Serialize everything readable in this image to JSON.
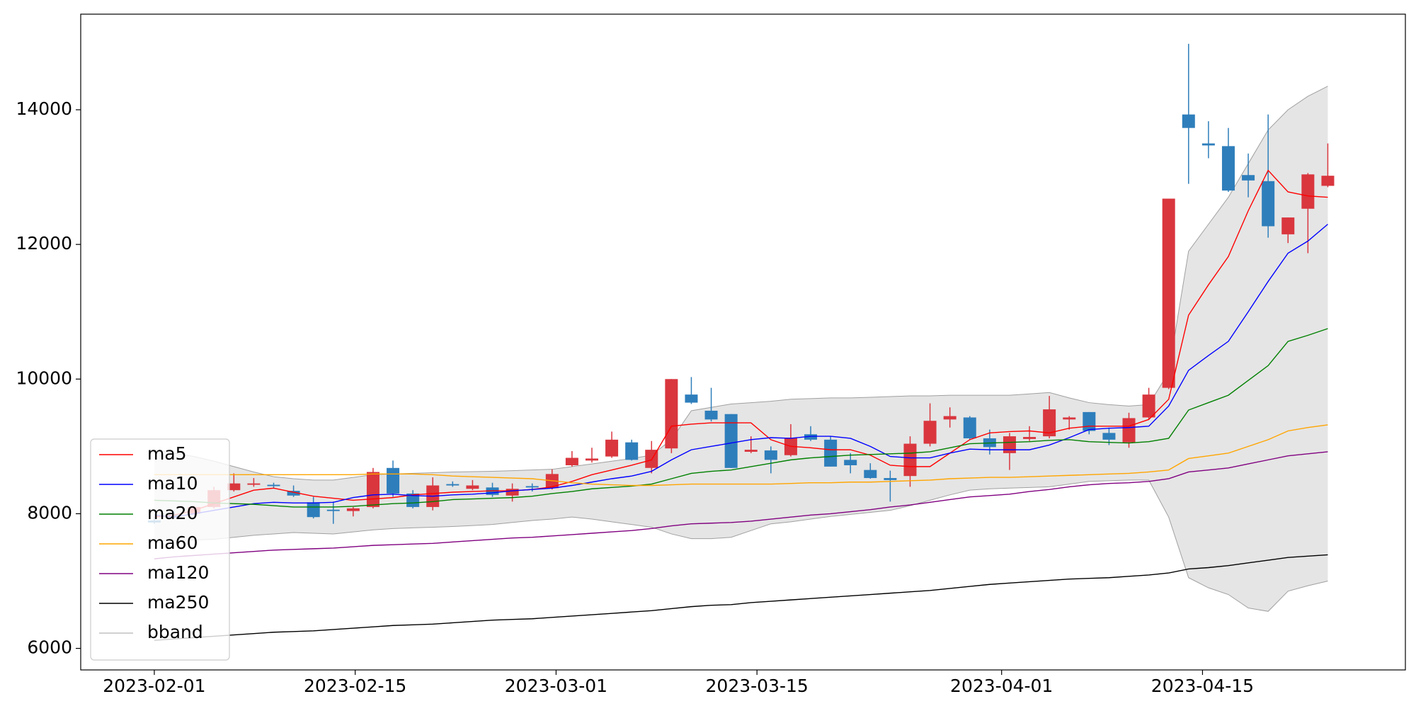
{
  "chart_data": {
    "type": "candlestick",
    "x": [
      "2023-02-01",
      "2023-02-02",
      "2023-02-03",
      "2023-02-06",
      "2023-02-07",
      "2023-02-08",
      "2023-02-09",
      "2023-02-10",
      "2023-02-13",
      "2023-02-14",
      "2023-02-15",
      "2023-02-16",
      "2023-02-17",
      "2023-02-20",
      "2023-02-21",
      "2023-02-22",
      "2023-02-23",
      "2023-02-24",
      "2023-02-27",
      "2023-02-28",
      "2023-03-01",
      "2023-03-02",
      "2023-03-03",
      "2023-03-06",
      "2023-03-07",
      "2023-03-08",
      "2023-03-09",
      "2023-03-10",
      "2023-03-13",
      "2023-03-14",
      "2023-03-15",
      "2023-03-16",
      "2023-03-17",
      "2023-03-20",
      "2023-03-21",
      "2023-03-22",
      "2023-03-23",
      "2023-03-24",
      "2023-03-27",
      "2023-03-28",
      "2023-03-29",
      "2023-03-30",
      "2023-03-31",
      "2023-04-03",
      "2023-04-04",
      "2023-04-05",
      "2023-04-06",
      "2023-04-07",
      "2023-04-10",
      "2023-04-11",
      "2023-04-12",
      "2023-04-13",
      "2023-04-14",
      "2023-04-17",
      "2023-04-18",
      "2023-04-19",
      "2023-04-20",
      "2023-04-21",
      "2023-04-24",
      "2023-04-25"
    ],
    "open": [
      7900,
      7990,
      8000,
      8100,
      8350,
      8430,
      8430,
      8340,
      8170,
      8060,
      8040,
      8100,
      8680,
      8300,
      8100,
      8440,
      8370,
      8390,
      8270,
      8410,
      8380,
      8720,
      8790,
      8850,
      9060,
      8680,
      8970,
      9770,
      9530,
      9480,
      8920,
      8940,
      8870,
      9180,
      9100,
      8800,
      8650,
      8530,
      8560,
      9040,
      9400,
      9430,
      9120,
      8900,
      9110,
      9150,
      9400,
      9510,
      9200,
      9060,
      9430,
      9870,
      13930,
      13500,
      13460,
      13030,
      12940,
      12150,
      12530,
      12870
    ],
    "high": [
      7960,
      8050,
      8120,
      8400,
      8600,
      8530,
      8460,
      8420,
      8250,
      8180,
      8100,
      8680,
      8790,
      8350,
      8540,
      8480,
      8500,
      8460,
      8450,
      8450,
      8660,
      8930,
      8980,
      9220,
      9100,
      9080,
      10000,
      10030,
      9870,
      9480,
      9150,
      9000,
      9330,
      9300,
      9150,
      8900,
      8750,
      8640,
      9150,
      9640,
      9580,
      9450,
      9250,
      9200,
      9300,
      9750,
      9450,
      9510,
      9280,
      9500,
      9870,
      12680,
      14980,
      13830,
      13730,
      13350,
      13930,
      12400,
      13060,
      13500
    ],
    "low": [
      7850,
      7930,
      7980,
      8080,
      8330,
      8400,
      8380,
      8250,
      7930,
      7850,
      7960,
      8080,
      8250,
      8080,
      8050,
      8400,
      8350,
      8250,
      8180,
      8330,
      8360,
      8700,
      8760,
      8830,
      8790,
      8600,
      8900,
      9630,
      9370,
      8680,
      8900,
      8600,
      8850,
      9080,
      8700,
      8600,
      8520,
      8180,
      8400,
      9000,
      9280,
      9100,
      8880,
      8650,
      9080,
      9120,
      9250,
      9180,
      9020,
      8980,
      9400,
      9850,
      12900,
      13280,
      12780,
      12700,
      12100,
      12020,
      11870,
      12850
    ],
    "close": [
      7870,
      7960,
      8100,
      8350,
      8450,
      8450,
      8410,
      8270,
      7950,
      8040,
      8080,
      8620,
      8300,
      8100,
      8420,
      8420,
      8420,
      8280,
      8370,
      8390,
      8590,
      8830,
      8820,
      9100,
      8800,
      8950,
      10000,
      9650,
      9400,
      8680,
      8950,
      8800,
      9130,
      9100,
      8700,
      8720,
      8530,
      8500,
      9040,
      9380,
      9450,
      9120,
      8990,
      9150,
      9140,
      9550,
      9430,
      9230,
      9100,
      9420,
      9770,
      12680,
      13730,
      13470,
      12800,
      12950,
      12270,
      12400,
      13040,
      13020
    ],
    "up_color": "#d9363e",
    "down_color": "#2e7ebb",
    "series": [
      {
        "name": "ma5",
        "color": "#ff0000",
        "values": [
          7950,
          7980,
          8050,
          8150,
          8250,
          8350,
          8380,
          8320,
          8260,
          8230,
          8200,
          8220,
          8240,
          8280,
          8300,
          8320,
          8330,
          8340,
          8340,
          8360,
          8400,
          8480,
          8580,
          8650,
          8720,
          8800,
          9300,
          9330,
          9350,
          9350,
          9350,
          9100,
          9000,
          8980,
          8950,
          8950,
          8870,
          8720,
          8700,
          8700,
          8900,
          9100,
          9200,
          9220,
          9230,
          9200,
          9270,
          9300,
          9300,
          9300,
          9400,
          9700,
          10950,
          11400,
          11820,
          12500,
          13100,
          12780,
          12720,
          12700
        ]
      },
      {
        "name": "ma10",
        "color": "#0000ff",
        "values": [
          7980,
          7950,
          8000,
          8050,
          8100,
          8150,
          8170,
          8160,
          8160,
          8170,
          8240,
          8280,
          8290,
          8270,
          8260,
          8280,
          8290,
          8310,
          8340,
          8360,
          8380,
          8420,
          8470,
          8520,
          8560,
          8630,
          8800,
          8950,
          9000,
          9050,
          9100,
          9130,
          9120,
          9150,
          9150,
          9120,
          9000,
          8850,
          8830,
          8830,
          8900,
          8960,
          8950,
          8950,
          8950,
          9020,
          9130,
          9250,
          9270,
          9280,
          9300,
          9600,
          10130,
          10350,
          10560,
          11000,
          11450,
          11870,
          12050,
          12300
        ]
      },
      {
        "name": "ma20",
        "color": "#008000",
        "values": [
          8200,
          8190,
          8180,
          8160,
          8150,
          8140,
          8120,
          8100,
          8100,
          8100,
          8110,
          8130,
          8150,
          8160,
          8180,
          8210,
          8220,
          8230,
          8240,
          8260,
          8300,
          8330,
          8370,
          8390,
          8410,
          8440,
          8520,
          8600,
          8630,
          8650,
          8700,
          8750,
          8800,
          8830,
          8850,
          8870,
          8880,
          8890,
          8900,
          8920,
          8980,
          9040,
          9050,
          9060,
          9070,
          9090,
          9100,
          9070,
          9060,
          9050,
          9070,
          9120,
          9540,
          9650,
          9760,
          9980,
          10200,
          10560,
          10650,
          10750
        ]
      },
      {
        "name": "ma60",
        "color": "#ffa500",
        "values": [
          8580,
          8580,
          8580,
          8580,
          8580,
          8580,
          8580,
          8580,
          8580,
          8580,
          8580,
          8590,
          8590,
          8590,
          8580,
          8560,
          8550,
          8540,
          8530,
          8520,
          8490,
          8460,
          8440,
          8430,
          8420,
          8420,
          8430,
          8440,
          8440,
          8440,
          8440,
          8440,
          8450,
          8460,
          8460,
          8470,
          8470,
          8480,
          8490,
          8500,
          8520,
          8530,
          8540,
          8540,
          8550,
          8560,
          8570,
          8580,
          8590,
          8600,
          8620,
          8650,
          8820,
          8860,
          8900,
          9000,
          9100,
          9230,
          9280,
          9320
        ]
      },
      {
        "name": "ma120",
        "color": "#800080",
        "values": [
          7330,
          7360,
          7380,
          7400,
          7420,
          7440,
          7460,
          7470,
          7480,
          7490,
          7510,
          7530,
          7540,
          7550,
          7560,
          7580,
          7600,
          7620,
          7640,
          7650,
          7670,
          7690,
          7710,
          7730,
          7750,
          7780,
          7820,
          7850,
          7860,
          7870,
          7890,
          7920,
          7950,
          7980,
          8000,
          8030,
          8060,
          8100,
          8130,
          8170,
          8210,
          8250,
          8270,
          8290,
          8330,
          8360,
          8400,
          8430,
          8450,
          8460,
          8480,
          8520,
          8620,
          8650,
          8680,
          8740,
          8800,
          8860,
          8890,
          8920
        ]
      },
      {
        "name": "ma250",
        "color": "#000000",
        "values": [
          6120,
          6140,
          6160,
          6180,
          6200,
          6220,
          6240,
          6250,
          6260,
          6280,
          6300,
          6320,
          6340,
          6350,
          6360,
          6380,
          6400,
          6420,
          6430,
          6440,
          6460,
          6480,
          6500,
          6520,
          6540,
          6560,
          6590,
          6620,
          6640,
          6650,
          6680,
          6700,
          6720,
          6740,
          6760,
          6780,
          6800,
          6820,
          6840,
          6860,
          6890,
          6920,
          6950,
          6970,
          6990,
          7010,
          7030,
          7040,
          7050,
          7070,
          7090,
          7120,
          7180,
          7200,
          7230,
          7270,
          7310,
          7350,
          7370,
          7390
        ]
      }
    ],
    "band": {
      "name": "bband",
      "color": "#a0a0a0",
      "fill": "#e5e5e5",
      "upper": [
        8950,
        8900,
        8850,
        8780,
        8700,
        8620,
        8550,
        8520,
        8500,
        8500,
        8540,
        8580,
        8590,
        8600,
        8610,
        8620,
        8625,
        8630,
        8640,
        8650,
        8660,
        8700,
        8740,
        8780,
        8820,
        8870,
        9100,
        9530,
        9580,
        9630,
        9650,
        9670,
        9700,
        9710,
        9720,
        9720,
        9730,
        9740,
        9750,
        9750,
        9760,
        9760,
        9760,
        9760,
        9780,
        9800,
        9720,
        9650,
        9620,
        9600,
        9620,
        10100,
        11900,
        12300,
        12700,
        13200,
        13700,
        14000,
        14200,
        14350
      ],
      "lower": [
        7600,
        7600,
        7610,
        7620,
        7650,
        7680,
        7700,
        7720,
        7710,
        7700,
        7730,
        7760,
        7780,
        7790,
        7800,
        7810,
        7825,
        7840,
        7870,
        7900,
        7920,
        7950,
        7920,
        7880,
        7840,
        7800,
        7700,
        7630,
        7630,
        7650,
        7750,
        7850,
        7880,
        7920,
        7960,
        7990,
        8020,
        8050,
        8120,
        8200,
        8280,
        8350,
        8370,
        8380,
        8390,
        8400,
        8440,
        8480,
        8490,
        8500,
        8500,
        7950,
        7050,
        6900,
        6800,
        6600,
        6550,
        6850,
        6930,
        7000
      ]
    },
    "xlim": [
      -3.7,
      62.9
    ],
    "xticks": [
      {
        "value": 0,
        "label": "2023-02-01"
      },
      {
        "value": 10.1,
        "label": "2023-02-15"
      },
      {
        "value": 20.2,
        "label": "2023-03-01"
      },
      {
        "value": 30.3,
        "label": "2023-03-15"
      },
      {
        "value": 42.6,
        "label": "2023-04-01"
      },
      {
        "value": 52.7,
        "label": "2023-04-15"
      }
    ],
    "ylim": [
      5680,
      15420
    ],
    "yticks": [
      6000,
      8000,
      10000,
      12000,
      14000
    ],
    "legend": "lower left"
  }
}
